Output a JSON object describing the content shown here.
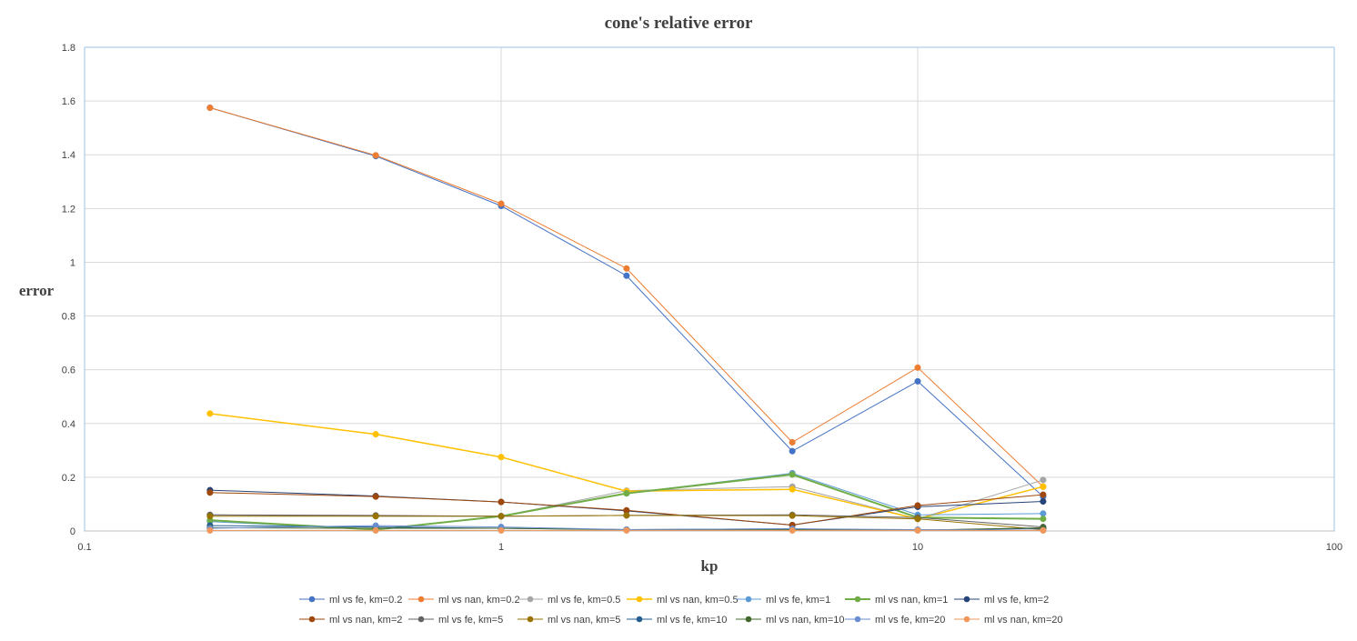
{
  "chart_data": {
    "type": "line",
    "title": "cone's relative error",
    "xlabel": "kp",
    "ylabel": "error",
    "x_scale": "log",
    "xlim": [
      0.1,
      100
    ],
    "ylim": [
      0,
      1.8
    ],
    "x_ticks": [
      0.1,
      1,
      10,
      100
    ],
    "x_tick_labels": [
      "0.1",
      "1",
      "10",
      "100"
    ],
    "y_ticks": [
      0,
      0.2,
      0.4,
      0.6,
      0.8,
      1,
      1.2,
      1.4,
      1.6,
      1.8
    ],
    "y_tick_labels": [
      "0",
      "0.2",
      "0.4",
      "0.6",
      "0.8",
      "1",
      "1.2",
      "1.4",
      "1.6",
      "1.8"
    ],
    "x": [
      0.2,
      0.5,
      1,
      2,
      5,
      10,
      20
    ],
    "grid": "major gridlines on both axes",
    "legend_position": "bottom",
    "series": [
      {
        "name": "ml vs fe, km=0.2",
        "color": "#4472C4",
        "width": 1,
        "values": [
          1.575,
          1.395,
          1.21,
          0.95,
          0.297,
          0.557,
          0.128
        ]
      },
      {
        "name": "ml vs nan, km=0.2",
        "color": "#ED7D31",
        "width": 1,
        "values": [
          1.575,
          1.398,
          1.218,
          0.977,
          0.33,
          0.608,
          0.165
        ]
      },
      {
        "name": "ml vs fe, km=0.5",
        "color": "#A5A5A5",
        "width": 1,
        "values": [
          0.06,
          0.055,
          0.055,
          0.15,
          0.165,
          0.045,
          0.19
        ]
      },
      {
        "name": "ml vs nan, km=0.5",
        "color": "#FFC000",
        "width": 1.5,
        "values": [
          0.437,
          0.36,
          0.275,
          0.148,
          0.155,
          0.045,
          0.165
        ]
      },
      {
        "name": "ml vs fe, km=1",
        "color": "#5B9BD5",
        "width": 1,
        "values": [
          0.035,
          0.005,
          0.055,
          0.14,
          0.215,
          0.06,
          0.065
        ]
      },
      {
        "name": "ml vs nan, km=1",
        "color": "#70AD47",
        "width": 2,
        "values": [
          0.04,
          0.005,
          0.055,
          0.14,
          0.21,
          0.05,
          0.045
        ]
      },
      {
        "name": "ml vs fe, km=2",
        "color": "#264478",
        "width": 1,
        "values": [
          0.152,
          0.13,
          0.108,
          0.075,
          0.022,
          0.09,
          0.11
        ]
      },
      {
        "name": "ml vs nan, km=2",
        "color": "#9E480E",
        "width": 1,
        "values": [
          0.143,
          0.128,
          0.108,
          0.077,
          0.022,
          0.095,
          0.135
        ]
      },
      {
        "name": "ml vs fe, km=5",
        "color": "#636363",
        "width": 1,
        "values": [
          0.06,
          0.058,
          0.055,
          0.058,
          0.06,
          0.05,
          0.015
        ]
      },
      {
        "name": "ml vs nan, km=5",
        "color": "#997300",
        "width": 1,
        "values": [
          0.055,
          0.055,
          0.055,
          0.058,
          0.057,
          0.045,
          0.005
        ]
      },
      {
        "name": "ml vs fe, km=10",
        "color": "#255E91",
        "width": 1,
        "values": [
          0.02,
          0.015,
          0.01,
          0.005,
          0.008,
          0.003,
          0.01
        ]
      },
      {
        "name": "ml vs nan, km=10",
        "color": "#43682B",
        "width": 1,
        "values": [
          0.012,
          0.01,
          0.01,
          0.005,
          0.005,
          0.003,
          0.012
        ]
      },
      {
        "name": "ml vs fe, km=20",
        "color": "#698ED0",
        "width": 1,
        "values": [
          0.01,
          0.02,
          0.015,
          0.005,
          0.008,
          0.005,
          0.003
        ]
      },
      {
        "name": "ml vs nan, km=20",
        "color": "#F1975A",
        "width": 1,
        "values": [
          0.002,
          0.002,
          0.002,
          0.002,
          0.002,
          0.002,
          0.002
        ]
      }
    ]
  }
}
